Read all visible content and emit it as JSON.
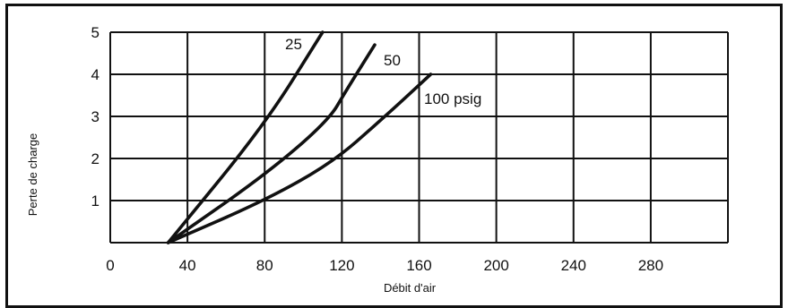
{
  "chart_data": {
    "type": "line",
    "title": "",
    "xlabel": "Débit d'air",
    "ylabel": "Perte de charge",
    "xlim": [
      0,
      320
    ],
    "ylim": [
      0,
      5
    ],
    "x_ticks": [
      "0",
      "40",
      "80",
      "120",
      "160",
      "200",
      "240",
      "280"
    ],
    "y_ticks": [
      "1",
      "2",
      "3",
      "4",
      "5"
    ],
    "grid": true,
    "series": [
      {
        "name": "25",
        "x": [
          30,
          80,
          110
        ],
        "y": [
          0,
          2.8,
          5.0
        ]
      },
      {
        "name": "50",
        "x": [
          30,
          80,
          113,
          122,
          137
        ],
        "y": [
          0,
          1.6,
          2.9,
          3.6,
          4.7
        ]
      },
      {
        "name": "100 psig",
        "x": [
          30,
          80,
          115,
          140,
          166
        ],
        "y": [
          0,
          1.0,
          1.9,
          2.9,
          4.0
        ]
      }
    ],
    "series_labels": [
      "25",
      "50",
      "100 psig"
    ]
  }
}
